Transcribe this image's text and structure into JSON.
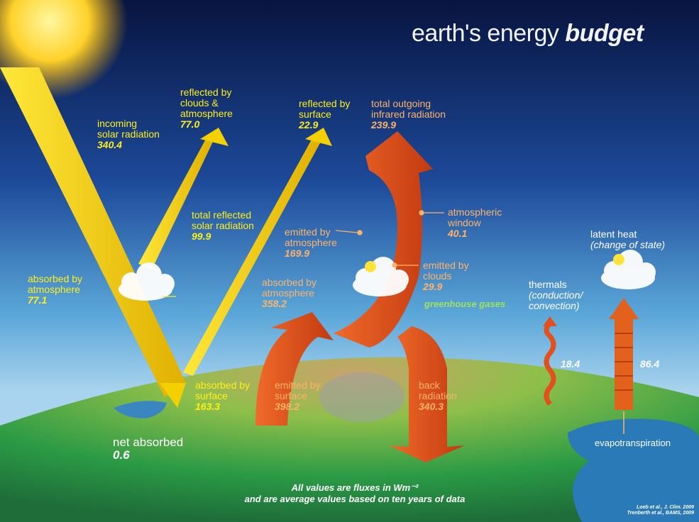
{
  "title": {
    "main": "earth's energy",
    "bold": "budget"
  },
  "labels": {
    "incoming": {
      "name": "incoming\nsolar radiation",
      "value": "340.4",
      "color": "#ffef1a"
    },
    "reflected_clouds": {
      "name": "reflected by\nclouds &\natmosphere",
      "value": "77.0",
      "color": "#ffef1a"
    },
    "reflected_surface": {
      "name": "reflected by\nsurface",
      "value": "22.9",
      "color": "#ffef1a"
    },
    "total_reflected": {
      "name": "total reflected\nsolar radiation",
      "value": "99.9",
      "color": "#ffef1a"
    },
    "absorbed_atmosphere_solar": {
      "name": "absorbed by\natmosphere",
      "value": "77.1",
      "color": "#ffef1a"
    },
    "absorbed_surface": {
      "name": "absorbed by\nsurface",
      "value": "163.3",
      "color": "#ffef1a"
    },
    "total_outgoing": {
      "name": "total outgoing\ninfrared radiation",
      "value": "239.9",
      "color": "#ffb36a"
    },
    "atmospheric_window": {
      "name": "atmospheric\nwindow",
      "value": "40.1",
      "color": "#ffb36a"
    },
    "emitted_atmosphere": {
      "name": "emitted by\natmosphere",
      "value": "169.9",
      "color": "#ffb36a"
    },
    "emitted_clouds": {
      "name": "emitted by\nclouds",
      "value": "29.9",
      "color": "#ffb36a"
    },
    "absorbed_atmosphere_ir": {
      "name": "absorbed by\natmosphere",
      "value": "358.2",
      "color": "#ffb36a"
    },
    "emitted_surface": {
      "name": "emitted by\nsurface",
      "value": "398.2",
      "color": "#ffb36a"
    },
    "back_radiation": {
      "name": "back\nradiation",
      "value": "340.3",
      "color": "#ffb36a"
    },
    "latent_heat": {
      "name": "latent heat",
      "sub": "(change of state)"
    },
    "thermals": {
      "name": "thermals",
      "sub": "(conduction/\nconvection)"
    },
    "thermals_value": "18.4",
    "evapo_value": "86.4",
    "evapotranspiration": "evapotranspiration",
    "net_absorbed": {
      "name": "net absorbed",
      "value": "0.6"
    },
    "greenhouse": "greenhouse gases"
  },
  "note": {
    "line1": "All values are fluxes in Wm⁻²",
    "line2": "and are average values based on ten years of data"
  },
  "references": [
    "Loeb et al., J. Clim. 2009",
    "Trenberth et al., BAMS, 2009"
  ],
  "colors": {
    "solar": "#f5d000",
    "infrared": "#e2511c",
    "sky_top": "#0a1a4a",
    "earth": "#3aa84a"
  }
}
